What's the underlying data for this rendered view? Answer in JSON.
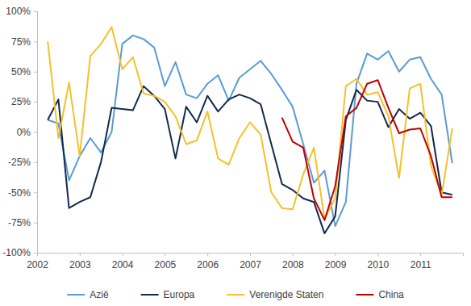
{
  "chart_data": {
    "type": "line",
    "x": [
      2002.25,
      2002.5,
      2002.75,
      2003,
      2003.25,
      2003.5,
      2003.75,
      2004,
      2004.25,
      2004.5,
      2004.75,
      2005,
      2005.25,
      2005.5,
      2005.75,
      2006,
      2006.25,
      2006.5,
      2006.75,
      2007,
      2007.25,
      2007.5,
      2007.75,
      2008,
      2008.25,
      2008.5,
      2008.75,
      2009,
      2009.25,
      2009.5,
      2009.75,
      2010,
      2010.25,
      2010.5,
      2010.75,
      2011,
      2011.25,
      2011.5,
      2011.75
    ],
    "series": [
      {
        "name": "Azië",
        "color": "#5a9bd5",
        "values": [
          10,
          7,
          -40,
          -20,
          -5,
          -17,
          0,
          73,
          80,
          77,
          70,
          38,
          58,
          31,
          28,
          40,
          47,
          26,
          45,
          52,
          59,
          48,
          35,
          21,
          -10,
          -42,
          -32,
          -78,
          -58,
          40,
          65,
          60,
          67,
          50,
          60,
          62,
          44,
          31,
          -26
        ]
      },
      {
        "name": "Europa",
        "color": "#14294b",
        "values": [
          10,
          27,
          -63,
          -58,
          -54,
          -25,
          20,
          19,
          18,
          38,
          30,
          19,
          -22,
          21,
          8,
          30,
          17,
          27,
          31,
          28,
          23,
          -10,
          -43,
          -48,
          -55,
          -58,
          -84,
          -70,
          10,
          35,
          26,
          25,
          4,
          19,
          11,
          16,
          5,
          -50,
          -52
        ]
      },
      {
        "name": "Verenigde Staten",
        "color": "#f5c12c",
        "values": [
          75,
          -5,
          41,
          -20,
          63,
          73,
          87,
          52,
          62,
          32,
          30,
          25,
          13,
          -10,
          -7,
          17,
          -22,
          -27,
          -5,
          8,
          -2,
          -50,
          -63,
          -64,
          -35,
          -13,
          -72,
          -55,
          38,
          44,
          31,
          33,
          13,
          -38,
          36,
          40,
          -28,
          -52,
          3
        ]
      },
      {
        "name": "China",
        "color": "#c00000",
        "values": [
          null,
          null,
          null,
          null,
          null,
          null,
          null,
          null,
          null,
          null,
          null,
          null,
          null,
          null,
          null,
          null,
          null,
          null,
          null,
          null,
          null,
          null,
          12,
          -8,
          -13,
          -55,
          -73,
          -45,
          13,
          20,
          40,
          43,
          20,
          -1,
          2,
          3,
          -20,
          -54,
          -54
        ]
      }
    ],
    "xlim": [
      2002,
      2012
    ],
    "xticks": [
      2002,
      2003,
      2004,
      2005,
      2006,
      2007,
      2008,
      2009,
      2010,
      2011
    ],
    "ylim": [
      -100,
      100
    ],
    "yticks": [
      {
        "value": -100,
        "label": "-100%"
      },
      {
        "value": -75,
        "label": "-75%"
      },
      {
        "value": -50,
        "label": "-50%"
      },
      {
        "value": -25,
        "label": "-25%"
      },
      {
        "value": 0,
        "label": "0%"
      },
      {
        "value": 25,
        "label": "25%"
      },
      {
        "value": 50,
        "label": "50%"
      },
      {
        "value": 75,
        "label": "75%"
      },
      {
        "value": 100,
        "label": "100%"
      }
    ],
    "grid": false,
    "legend": "bottom"
  }
}
